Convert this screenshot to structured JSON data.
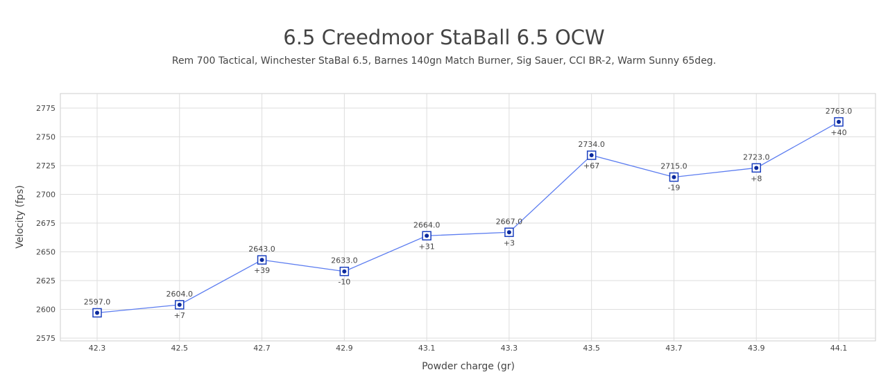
{
  "chart_data": {
    "type": "line",
    "title": "6.5 Creedmoor StaBall 6.5 OCW",
    "subtitle": "Rem 700 Tactical, Winchester StaBal 6.5, Barnes 140gn Match Burner, Sig Sauer, CCI BR-2, Warm Sunny 65deg.",
    "xlabel": "Powder charge (gr)",
    "ylabel": "Velocity (fps)",
    "x": [
      42.3,
      42.5,
      42.7,
      42.9,
      43.1,
      43.3,
      43.5,
      43.7,
      43.9,
      44.1
    ],
    "x_tick_labels": [
      "42.3",
      "42.5",
      "42.7",
      "42.9",
      "43.1",
      "43.3",
      "43.5",
      "43.7",
      "43.9",
      "44.1"
    ],
    "values": [
      2597.0,
      2604.0,
      2643.0,
      2633.0,
      2664.0,
      2667.0,
      2734.0,
      2715.0,
      2723.0,
      2763.0
    ],
    "value_labels": [
      "2597.0",
      "2604.0",
      "2643.0",
      "2633.0",
      "2664.0",
      "2667.0",
      "2734.0",
      "2715.0",
      "2723.0",
      "2763.0"
    ],
    "diff_labels": [
      "",
      "+7",
      "+39",
      "-10",
      "+31",
      "+3",
      "+67",
      "-19",
      "+8",
      "+40"
    ],
    "y_ticks": [
      2575,
      2600,
      2625,
      2650,
      2675,
      2700,
      2725,
      2750,
      2775
    ],
    "y_tick_labels": [
      "2575",
      "2600",
      "2625",
      "2650",
      "2675",
      "2700",
      "2725",
      "2750",
      "2775"
    ],
    "ylim": [
      2572,
      2788
    ],
    "grid": true,
    "colors": {
      "line": "#5b7cf0",
      "marker": "#1a3fbf",
      "dot": "#0b2a9e"
    }
  }
}
